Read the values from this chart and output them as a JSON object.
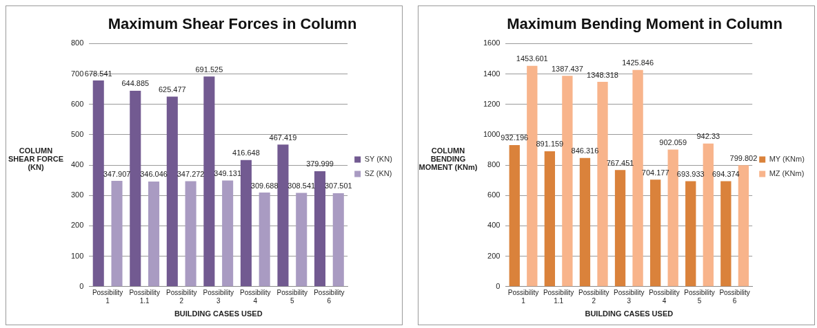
{
  "chart_data": [
    {
      "type": "bar",
      "title": "Maximum Shear Forces in Column",
      "xlabel": "BUILDING CASES USED",
      "ylabel": "COLUMN SHEAR FORCE (KN)",
      "categories": [
        "Possibility 1",
        "Possibility 1.1",
        "Possibility 2",
        "Possibility 3",
        "Possibility 4",
        "Possibility 5",
        "Possibility 6"
      ],
      "series": [
        {
          "name": "SY (KN)",
          "color": "#725a91",
          "values": [
            678.541,
            644.885,
            625.477,
            691.525,
            416.648,
            467.419,
            379.999
          ]
        },
        {
          "name": "SZ (KN)",
          "color": "#a99bc2",
          "values": [
            347.907,
            346.046,
            347.272,
            349.131,
            309.688,
            308.541,
            307.501
          ]
        }
      ],
      "ylim": [
        0,
        800
      ],
      "yticks": [
        0,
        100,
        200,
        300,
        400,
        500,
        600,
        700,
        800
      ],
      "grid": "y",
      "legend": "right",
      "data_labels": true
    },
    {
      "type": "bar",
      "title": "Maximum Bending Moment in Column",
      "xlabel": "BUILDING CASES USED",
      "ylabel": "COLUMN BENDING MOMENT (KNm)",
      "categories": [
        "Possibility 1",
        "Possibility 1.1",
        "Possibility 2",
        "Possibility 3",
        "Possibility 4",
        "Possibility 5",
        "Possibility 6"
      ],
      "series": [
        {
          "name": "MY (KNm)",
          "color": "#da823b",
          "values": [
            932.196,
            891.159,
            846.316,
            767.451,
            704.177,
            693.933,
            694.374
          ]
        },
        {
          "name": "MZ (KNm)",
          "color": "#f8b48b",
          "values": [
            1453.601,
            1387.437,
            1348.318,
            1425.846,
            902.059,
            942.33,
            799.802
          ]
        }
      ],
      "ylim": [
        0,
        1600
      ],
      "yticks": [
        0,
        200,
        400,
        600,
        800,
        1000,
        1200,
        1400,
        1600
      ],
      "grid": "y",
      "legend": "right",
      "data_labels": true
    }
  ]
}
